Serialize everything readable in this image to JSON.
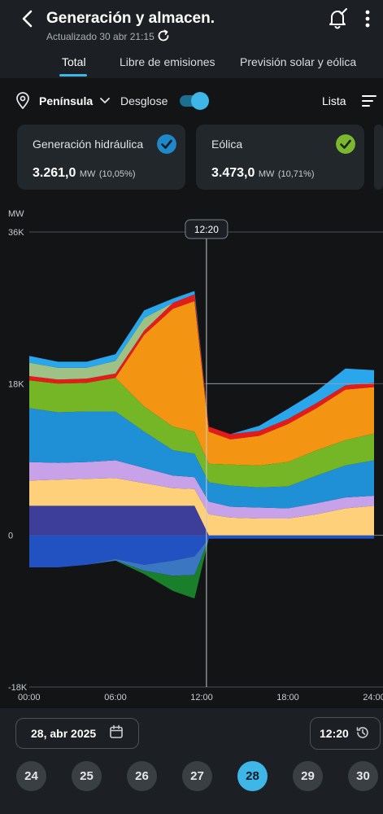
{
  "header": {
    "title": "Generación y almacen.",
    "updated": "Actualizado 30 abr 21:15"
  },
  "tabs": [
    {
      "label": "Total"
    },
    {
      "label": "Libre de emisiones"
    },
    {
      "label": "Previsión solar y eólica"
    }
  ],
  "filters": {
    "region": "Península",
    "breakdown_label": "Desglose",
    "breakdown_on": true,
    "list_label": "Lista"
  },
  "cards": [
    {
      "title": "Generación hidráulica",
      "value": "3.261,0",
      "unit": "MW",
      "percent": "(10,05%)",
      "check_color": "#1e88c8"
    },
    {
      "title": "Eólica",
      "value": "3.473,0",
      "unit": "MW",
      "percent": "(10,71%)",
      "check_color": "#7cb82f"
    }
  ],
  "chart_data": {
    "type": "area",
    "ylabel": "MW",
    "y_ticks": [
      "36K",
      "18K",
      "0",
      "-18K"
    ],
    "ylim": [
      -18000,
      36000
    ],
    "x_ticks": [
      "00:00",
      "06:00",
      "12:00",
      "18:00",
      "24:00"
    ],
    "cursor_label": "12:20",
    "x": [
      0,
      2,
      4,
      6,
      8,
      10,
      11.5,
      12.5,
      14,
      16,
      18,
      20,
      22,
      24
    ],
    "series": [
      {
        "color": "#3d3e9a",
        "values": [
          3500,
          3500,
          3500,
          3500,
          3500,
          3500,
          3500,
          0,
          0,
          0,
          0,
          0,
          0,
          0
        ]
      },
      {
        "color": "#ffd07a",
        "values": [
          3000,
          3100,
          3200,
          3300,
          2700,
          2100,
          2000,
          2500,
          2100,
          2000,
          2000,
          2500,
          3200,
          3500
        ]
      },
      {
        "color": "#c7a2e8",
        "values": [
          2200,
          2000,
          2000,
          2100,
          1800,
          1500,
          1400,
          1500,
          1300,
          1300,
          1200,
          1300,
          1300,
          1200
        ]
      },
      {
        "color": "#1f8fd6",
        "values": [
          6400,
          6000,
          6000,
          5800,
          4300,
          3000,
          2800,
          2300,
          2500,
          2400,
          2600,
          3300,
          3800,
          4200
        ]
      },
      {
        "color": "#74b626",
        "values": [
          3300,
          3400,
          3400,
          4000,
          3000,
          2800,
          2600,
          2200,
          2500,
          2600,
          2900,
          3000,
          3000,
          3200
        ]
      },
      {
        "color": "#f39512",
        "values": [
          0,
          0,
          0,
          0,
          8500,
          14000,
          15500,
          3800,
          3000,
          3500,
          4500,
          5000,
          6000,
          5500
        ]
      },
      {
        "color": "#e41b1b",
        "values": [
          500,
          500,
          500,
          500,
          500,
          700,
          800,
          600,
          600,
          600,
          600,
          600,
          500,
          500
        ]
      },
      {
        "color": "#9ec285",
        "values": [
          1600,
          1400,
          1300,
          1500,
          1500,
          0,
          0,
          0,
          0,
          0,
          0,
          0,
          0,
          0
        ]
      },
      {
        "color": "#2aa6ec",
        "values": [
          800,
          700,
          700,
          800,
          900,
          500,
          400,
          0,
          0,
          600,
          1200,
          1400,
          2000,
          1500
        ]
      }
    ],
    "negative_series": [
      {
        "color": "#2252c2",
        "values": [
          -3800,
          -3800,
          -3500,
          -2800,
          -3500,
          -3000,
          -2500,
          -400,
          -400,
          -400,
          -400,
          -400,
          -400,
          -400
        ]
      },
      {
        "color": "#3b76c2",
        "values": [
          0,
          0,
          0,
          -200,
          -700,
          -1800,
          -2200,
          0,
          0,
          0,
          0,
          0,
          0,
          0
        ]
      },
      {
        "color": "#1a7f2a",
        "values": [
          0,
          0,
          0,
          0,
          -400,
          -1800,
          -2800,
          0,
          0,
          0,
          0,
          0,
          0,
          0
        ]
      }
    ]
  },
  "footer": {
    "date": "28, abr 2025",
    "time": "12:20",
    "days": [
      "24",
      "25",
      "26",
      "27",
      "28",
      "29",
      "30"
    ],
    "selected_day": "28"
  },
  "colors": {
    "accent": "#3fb6e8",
    "background": "#121416",
    "panel": "#1c2024"
  }
}
